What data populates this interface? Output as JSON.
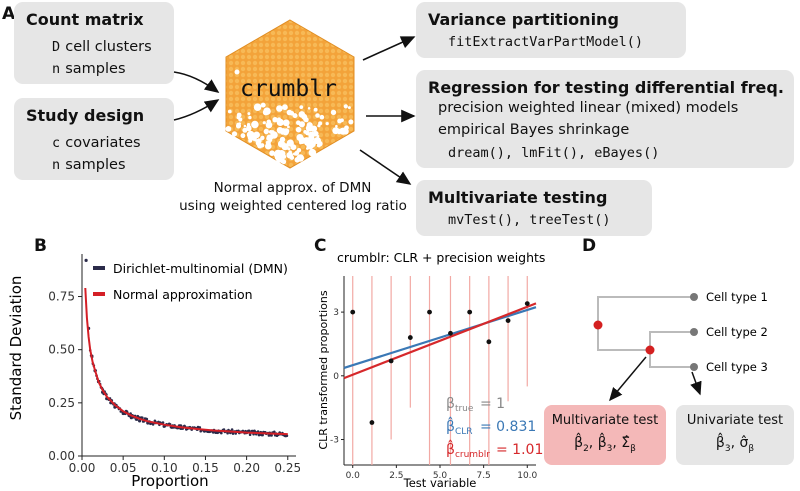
{
  "panel_letters": {
    "a": "A",
    "b": "B",
    "c": "C",
    "d": "D"
  },
  "panel_a": {
    "count_matrix": {
      "title": "Count matrix",
      "line1_var": "D",
      "line1_text": "cell clusters",
      "line2_var": "n",
      "line2_text": "samples"
    },
    "study_design": {
      "title": "Study design",
      "line1_var": "c",
      "line1_text": "covariates",
      "line2_var": "n",
      "line2_text": "samples"
    },
    "hex_label": "crumblr",
    "caption_line1": "Normal approx. of DMN",
    "caption_line2": "using weighted centered log ratio",
    "variance": {
      "title": "Variance partitioning",
      "code": "fitExtractVarPartModel()"
    },
    "regression": {
      "title": "Regression for testing differential freq.",
      "line1": "precision weighted linear (mixed) models",
      "line2": "empirical Bayes shrinkage",
      "code": "dream(), lmFit(), eBayes()"
    },
    "multivariate": {
      "title": "Multivariate testing",
      "code": "mvTest(), treeTest()"
    }
  },
  "panel_b": {
    "legend_dmn": "Dirichlet-multinomial (DMN)",
    "legend_normal": "Normal approximation",
    "colors": {
      "dmn": "#2b2b4a",
      "normal": "#d41f26"
    }
  },
  "panel_c": {
    "title": "crumblr: CLR + precision weights",
    "beta_true": "= 1",
    "beta_clr": "= 0.831",
    "beta_crumblr": "= 1.01",
    "colors": {
      "clr": "#3a78b5",
      "crumblr": "#d6282b",
      "gray": "#888888"
    }
  },
  "panel_d": {
    "cell_type_1": "Cell type 1",
    "cell_type_2": "Cell type 2",
    "cell_type_3": "Cell type 3",
    "multivariate_label": "Multivariate test",
    "univariate_label": "Univariate test",
    "colors": {
      "node_red": "#d42020",
      "multi_box": "#f4b8b8",
      "uni_box": "#e6e6e6"
    }
  },
  "chart_data": [
    {
      "type": "scatter",
      "title": "",
      "xlabel": "Proportion",
      "ylabel": "Standard Deviation",
      "xlim": [
        0,
        0.26
      ],
      "ylim": [
        0,
        0.95
      ],
      "x_ticks": [
        "0.00",
        "0.05",
        "0.10",
        "0.15",
        "0.20",
        "0.25"
      ],
      "y_ticks": [
        "0.00",
        "0.25",
        "0.50",
        "0.75"
      ],
      "series": [
        {
          "name": "Dirichlet-multinomial (DMN)",
          "x": [
            0.005,
            0.008,
            0.012,
            0.016,
            0.02,
            0.025,
            0.03,
            0.035,
            0.04,
            0.05,
            0.06,
            0.07,
            0.08,
            0.1,
            0.12,
            0.14,
            0.16,
            0.18,
            0.2,
            0.22,
            0.24
          ],
          "y": [
            0.92,
            0.6,
            0.47,
            0.4,
            0.35,
            0.3,
            0.27,
            0.25,
            0.23,
            0.2,
            0.18,
            0.165,
            0.155,
            0.14,
            0.13,
            0.125,
            0.12,
            0.115,
            0.11,
            0.108,
            0.105
          ]
        },
        {
          "name": "Normal approximation",
          "x": [
            0.004,
            0.006,
            0.008,
            0.01,
            0.013,
            0.016,
            0.02,
            0.025,
            0.03,
            0.035,
            0.04,
            0.05,
            0.06,
            0.07,
            0.08,
            0.1,
            0.12,
            0.14,
            0.16,
            0.18,
            0.2,
            0.22,
            0.24,
            0.25
          ],
          "y": [
            0.79,
            0.65,
            0.56,
            0.5,
            0.44,
            0.4,
            0.35,
            0.31,
            0.28,
            0.26,
            0.24,
            0.21,
            0.19,
            0.175,
            0.163,
            0.147,
            0.135,
            0.127,
            0.12,
            0.115,
            0.11,
            0.107,
            0.104,
            0.103
          ]
        }
      ]
    },
    {
      "type": "scatter",
      "title": "crumblr: CLR + precision weights",
      "xlabel": "Test variable",
      "ylabel": "CLR transformed proportions",
      "xlim": [
        -0.5,
        10.5
      ],
      "ylim": [
        -4.2,
        4.7
      ],
      "x_ticks": [
        "0.0",
        "2.5",
        "5.0",
        "7.5",
        "10.0"
      ],
      "y_ticks": [
        "-3",
        "0",
        "3"
      ],
      "points": {
        "x": [
          0,
          1.1,
          2.2,
          3.3,
          4.4,
          5.6,
          6.7,
          7.8,
          8.9,
          10
        ],
        "y": [
          3.0,
          -2.2,
          0.7,
          1.8,
          3.0,
          2.0,
          3.0,
          1.6,
          2.6,
          3.4
        ]
      },
      "error_bars": {
        "lower": [
          -4.2,
          -4.2,
          -3.0,
          -1.5,
          -4.2,
          -4.2,
          -4.2,
          -4.2,
          -1.2,
          -0.5
        ],
        "upper": [
          4.7,
          4.7,
          4.7,
          4.7,
          4.7,
          4.7,
          4.7,
          4.7,
          4.7,
          4.7
        ]
      },
      "lines": [
        {
          "name": "beta_CLR",
          "intercept": 0.5,
          "slope": 0.26
        },
        {
          "name": "beta_crumblr",
          "intercept": 0.05,
          "slope": 0.32
        },
        {
          "name": "beta_true",
          "intercept": 0.1,
          "slope": 0.31
        }
      ]
    }
  ]
}
